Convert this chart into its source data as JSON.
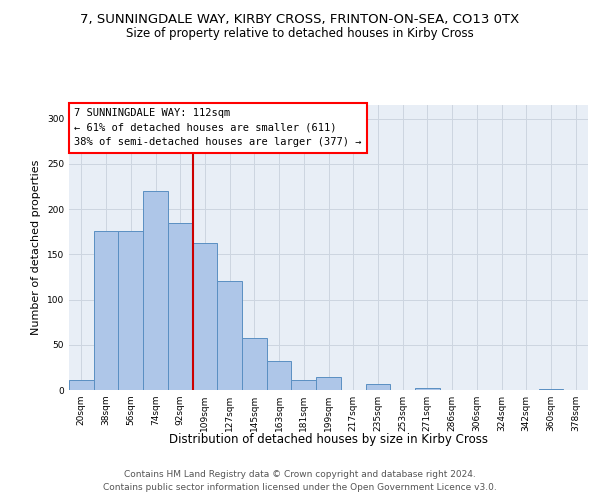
{
  "title": "7, SUNNINGDALE WAY, KIRBY CROSS, FRINTON-ON-SEA, CO13 0TX",
  "subtitle": "Size of property relative to detached houses in Kirby Cross",
  "xlabel": "Distribution of detached houses by size in Kirby Cross",
  "ylabel": "Number of detached properties",
  "categories": [
    "20sqm",
    "38sqm",
    "56sqm",
    "74sqm",
    "92sqm",
    "109sqm",
    "127sqm",
    "145sqm",
    "163sqm",
    "181sqm",
    "199sqm",
    "217sqm",
    "235sqm",
    "253sqm",
    "271sqm",
    "286sqm",
    "306sqm",
    "324sqm",
    "342sqm",
    "360sqm",
    "378sqm"
  ],
  "bar_values": [
    11,
    176,
    176,
    220,
    185,
    163,
    120,
    57,
    32,
    11,
    14,
    0,
    7,
    0,
    2,
    0,
    0,
    0,
    0,
    1,
    0
  ],
  "bar_color": "#aec6e8",
  "bar_edge_color": "#5a8fc2",
  "vline_index": 5,
  "vline_color": "#cc0000",
  "annotation_line1": "7 SUNNINGDALE WAY: 112sqm",
  "annotation_line2": "← 61% of detached houses are smaller (611)",
  "annotation_line3": "38% of semi-detached houses are larger (377) →",
  "ylim": [
    0,
    315
  ],
  "yticks": [
    0,
    50,
    100,
    150,
    200,
    250,
    300
  ],
  "grid_color": "#cdd5e0",
  "background_color": "#e8eef6",
  "footer_line1": "Contains HM Land Registry data © Crown copyright and database right 2024.",
  "footer_line2": "Contains public sector information licensed under the Open Government Licence v3.0.",
  "title_fontsize": 9.5,
  "subtitle_fontsize": 8.5,
  "xlabel_fontsize": 8.5,
  "ylabel_fontsize": 8,
  "annotation_fontsize": 7.5,
  "tick_fontsize": 6.5,
  "footer_fontsize": 6.5
}
